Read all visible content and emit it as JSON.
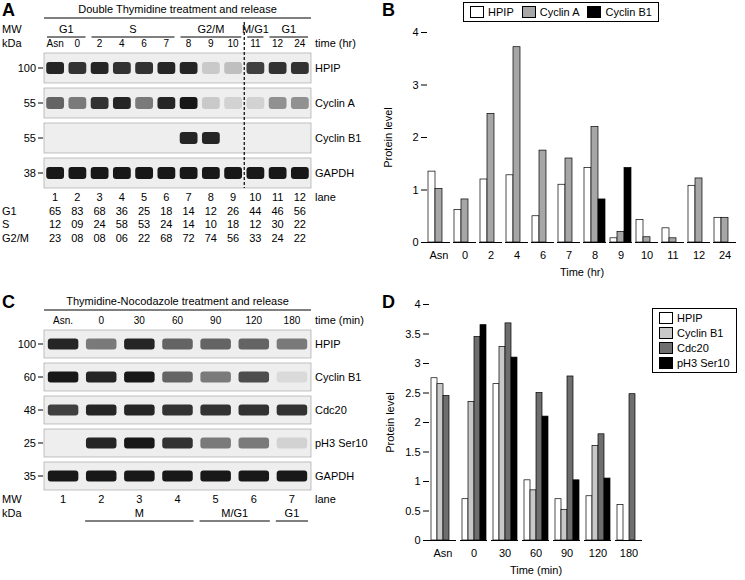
{
  "figure": {
    "blots": [
      {
        "panel": "A",
        "title": "Double Thymidine treatment and release",
        "mw_label": "MW",
        "mw_unit": "kDa",
        "time_label": "time (hr)",
        "lane_label": "lane",
        "times": [
          "Asn",
          "0",
          "2",
          "4",
          "6",
          "7",
          "8",
          "9",
          "10",
          "11",
          "12",
          "24"
        ],
        "header_phases": [
          {
            "label": "G1",
            "lanes": [
              1,
              2
            ]
          },
          {
            "label": "S",
            "lanes": [
              3,
              6
            ]
          },
          {
            "label": "G2/M",
            "lanes": [
              7,
              9
            ]
          },
          {
            "label": "M/G1",
            "lanes": [
              10,
              10
            ]
          },
          {
            "label": "G1",
            "lanes": [
              11,
              12
            ]
          }
        ],
        "divider_after_lane": 9,
        "rows": [
          {
            "protein": "HPIP",
            "mw": 100,
            "bands": [
              0.85,
              0.8,
              0.85,
              0.8,
              0.8,
              0.85,
              0.85,
              0.15,
              0.2,
              0.75,
              0.8,
              0.8
            ]
          },
          {
            "protein": "Cyclin A",
            "mw": 55,
            "bands": [
              0.6,
              0.5,
              0.8,
              0.85,
              0.5,
              0.85,
              0.9,
              0.15,
              0.1,
              0.1,
              0.4,
              0.4
            ]
          },
          {
            "protein": "Cyclin B1",
            "mw": 55,
            "bands": [
              0,
              0,
              0,
              0,
              0,
              0,
              0.85,
              0.85,
              0,
              0,
              0,
              0
            ]
          },
          {
            "protein": "GAPDH",
            "mw": 38,
            "bands": [
              0.9,
              0.9,
              0.9,
              0.9,
              0.9,
              0.9,
              0.9,
              0.9,
              0.9,
              0.9,
              0.9,
              0.9
            ]
          }
        ],
        "lanes": [
          1,
          2,
          3,
          4,
          5,
          6,
          7,
          8,
          9,
          10,
          11,
          12
        ],
        "phase_percent": [
          {
            "phase": "G1",
            "values": [
              "65",
              "83",
              "68",
              "36",
              "25",
              "18",
              "14",
              "12",
              "26",
              "44",
              "46",
              "56"
            ]
          },
          {
            "phase": "S",
            "values": [
              "12",
              "09",
              "24",
              "58",
              "53",
              "24",
              "14",
              "10",
              "18",
              "12",
              "30",
              "22"
            ]
          },
          {
            "phase": "G2/M",
            "values": [
              "23",
              "08",
              "08",
              "06",
              "22",
              "68",
              "72",
              "74",
              "56",
              "33",
              "24",
              "22"
            ]
          }
        ]
      },
      {
        "panel": "C",
        "title": "Thymidine-Nocodazole treatment and release",
        "mw_label": "MW",
        "mw_unit": "kDa",
        "time_label": "time (min)",
        "lane_label": "lane",
        "times": [
          "Asn.",
          "0",
          "30",
          "60",
          "90",
          "120",
          "180"
        ],
        "rows": [
          {
            "protein": "HPIP",
            "mw": 100,
            "bands": [
              0.85,
              0.5,
              0.85,
              0.6,
              0.6,
              0.6,
              0.5
            ]
          },
          {
            "protein": "Cyclin B1",
            "mw": 60,
            "bands": [
              0.9,
              0.85,
              0.9,
              0.6,
              0.5,
              0.7,
              0.05
            ]
          },
          {
            "protein": "Cdc20",
            "mw": 48,
            "bands": [
              0.75,
              0.85,
              0.85,
              0.8,
              0.8,
              0.8,
              0.8
            ]
          },
          {
            "protein": "pH3 Ser10",
            "mw": 25,
            "bands": [
              0,
              0.85,
              0.9,
              0.8,
              0.5,
              0.5,
              0.1
            ]
          },
          {
            "protein": "GAPDH",
            "mw": 35,
            "bands": [
              0.9,
              0.9,
              0.9,
              0.9,
              0.9,
              0.9,
              0.9
            ]
          }
        ],
        "lanes": [
          1,
          2,
          3,
          4,
          5,
          6,
          7
        ],
        "footer_phases": [
          {
            "label": "M",
            "lanes": [
              2,
              4
            ]
          },
          {
            "label": "M/G1",
            "lanes": [
              5,
              6
            ]
          },
          {
            "label": "G1",
            "lanes": [
              7,
              7
            ]
          }
        ]
      }
    ]
  },
  "chart_data": [
    {
      "panel": "B",
      "type": "bar",
      "categories": [
        "Asn",
        "0",
        "2",
        "4",
        "6",
        "7",
        "8",
        "9",
        "10",
        "11",
        "12",
        "24"
      ],
      "x_label": "Time (hr)",
      "y_label": "Protein level",
      "ylim": [
        0,
        4
      ],
      "yticks": [
        0,
        1,
        2,
        3,
        4
      ],
      "grid": false,
      "legend": "top",
      "series": [
        {
          "name": "HPIP",
          "color": "#ffffff",
          "values": [
            1.35,
            0.62,
            1.2,
            1.28,
            0.5,
            1.1,
            1.42,
            0.08,
            0.43,
            0.27,
            1.08,
            0.47
          ]
        },
        {
          "name": "Cyclin A",
          "color": "#a6a6a6",
          "values": [
            1.02,
            0.82,
            2.45,
            3.72,
            1.75,
            1.6,
            2.2,
            0.2,
            0.1,
            0.08,
            1.22,
            0.47
          ]
        },
        {
          "name": "Cyclin B1",
          "color": "#000000",
          "values": [
            null,
            null,
            null,
            null,
            null,
            null,
            0.82,
            1.42,
            null,
            null,
            null,
            null
          ]
        }
      ]
    },
    {
      "panel": "D",
      "type": "bar",
      "categories": [
        "Asn",
        "0",
        "30",
        "60",
        "90",
        "120",
        "180"
      ],
      "x_label": "Time (min)",
      "y_label": "Protein level",
      "ylim": [
        0,
        4
      ],
      "yticks": [
        0,
        0.5,
        1,
        1.5,
        2,
        2.5,
        3,
        3.5,
        4
      ],
      "grid": false,
      "legend": "right",
      "series": [
        {
          "name": "HPIP",
          "color": "#ffffff",
          "values": [
            2.75,
            0.7,
            2.65,
            1.02,
            0.7,
            0.75,
            0.6
          ]
        },
        {
          "name": "Cyclin B1",
          "color": "#c8c8c8",
          "values": [
            2.65,
            2.35,
            3.28,
            0.85,
            0.52,
            1.6,
            null
          ]
        },
        {
          "name": "Cdc20",
          "color": "#6e6e6e",
          "values": [
            2.45,
            3.45,
            3.68,
            2.5,
            2.78,
            1.8,
            2.48
          ]
        },
        {
          "name": "pH3 Ser10",
          "color": "#000000",
          "values": [
            null,
            3.65,
            3.1,
            2.1,
            1.02,
            1.05,
            null
          ]
        }
      ]
    }
  ]
}
